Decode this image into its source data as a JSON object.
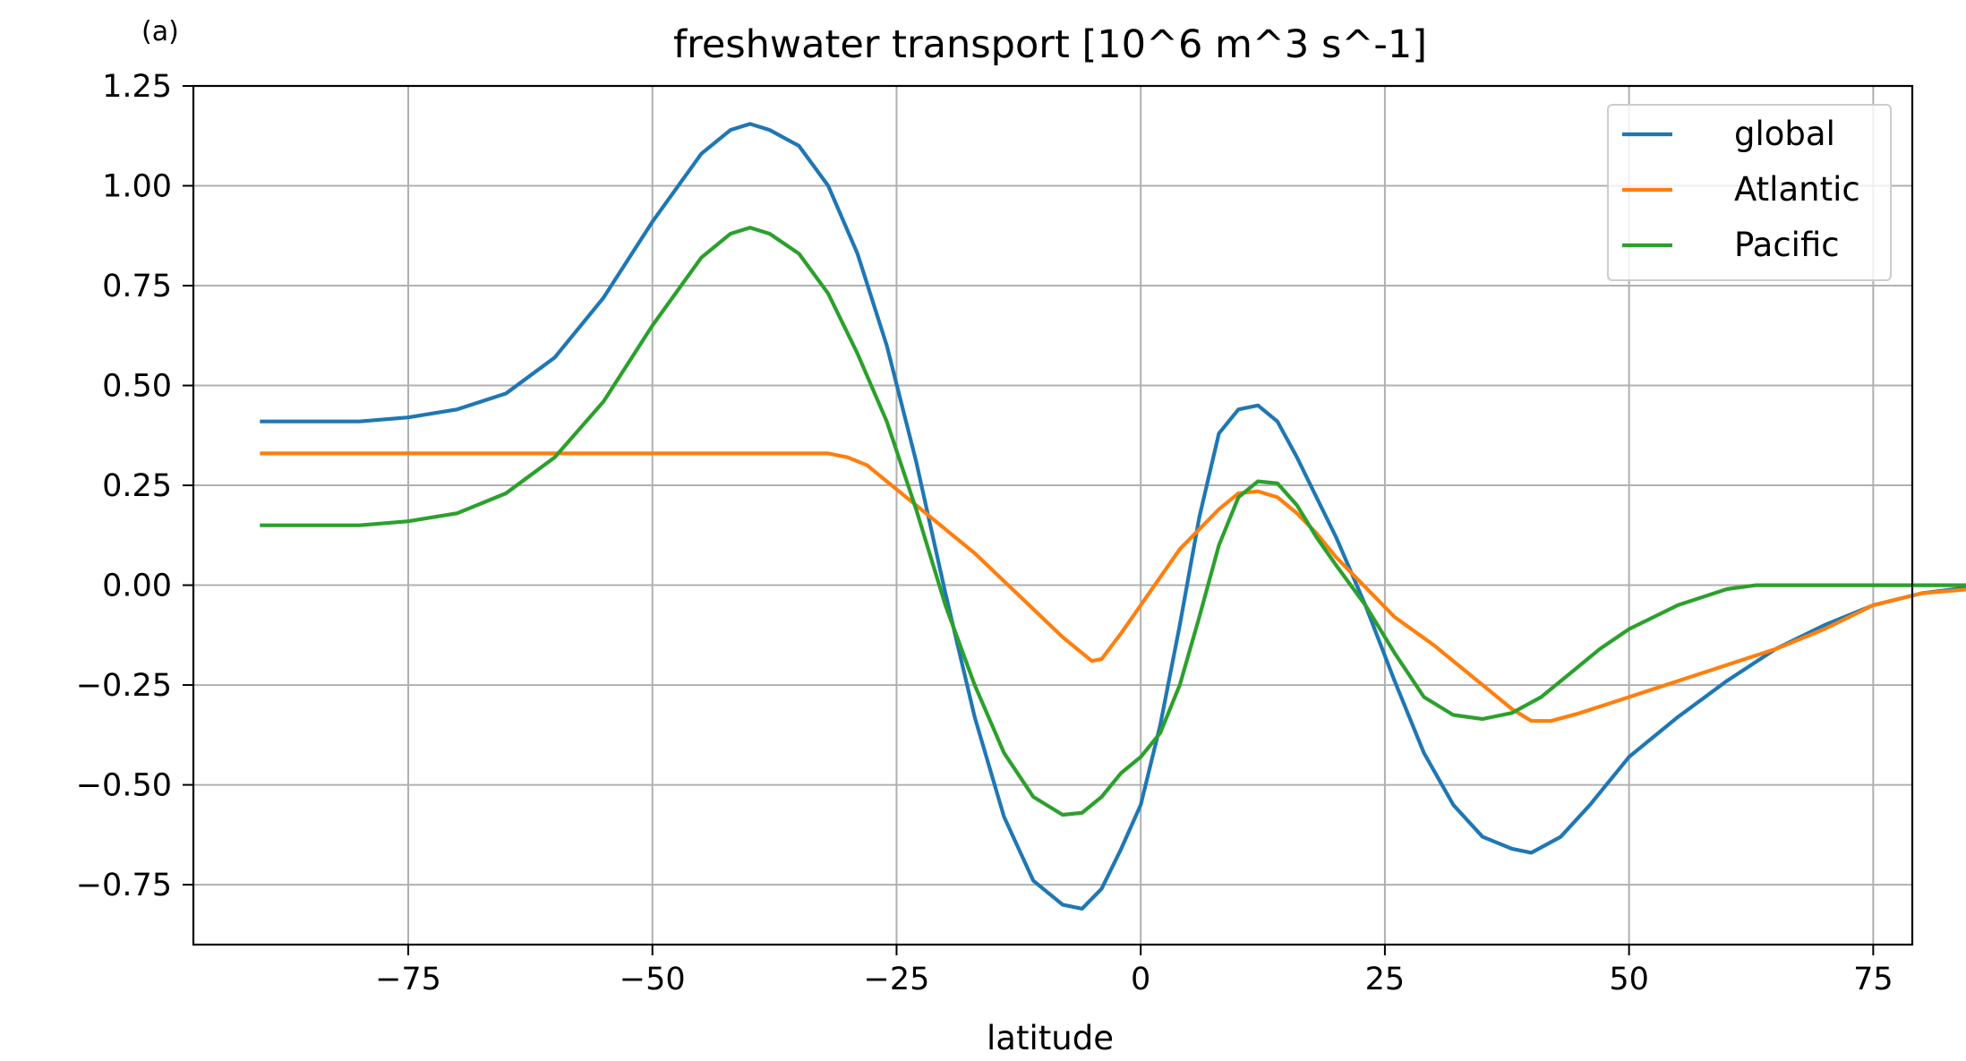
{
  "panel_label": "(a)",
  "chart_data": {
    "type": "line",
    "title": "freshwater transport [10^6 m^3 s^-1]",
    "xlabel": "latitude",
    "ylabel": "",
    "xlim": [
      -97,
      79
    ],
    "ylim": [
      -0.9,
      1.25
    ],
    "xticks": [
      -75,
      -50,
      -25,
      0,
      25,
      50,
      75
    ],
    "xtick_labels": [
      "−75",
      "−50",
      "−25",
      "0",
      "25",
      "50",
      "75"
    ],
    "yticks": [
      1.25,
      1.0,
      0.75,
      0.5,
      0.25,
      0.0,
      -0.25,
      -0.5,
      -0.75
    ],
    "ytick_labels": [
      "1.25",
      "1.00",
      "0.75",
      "0.50",
      "0.25",
      "0.00",
      "−0.25",
      "−0.50",
      "−0.75"
    ],
    "grid": true,
    "legend_position": "top-right",
    "series": [
      {
        "name": "global",
        "color": "#1f77b4",
        "x": [
          -90,
          -85,
          -80,
          -75,
          -70,
          -65,
          -60,
          -55,
          -50,
          -45,
          -42,
          -40,
          -38,
          -35,
          -32,
          -29,
          -26,
          -23,
          -20,
          -17,
          -14,
          -11,
          -8,
          -6,
          -4,
          -2,
          0,
          2,
          4,
          6,
          8,
          10,
          12,
          14,
          16,
          18,
          20,
          23,
          26,
          29,
          32,
          35,
          38,
          40,
          43,
          46,
          50,
          55,
          60,
          65,
          70,
          75,
          80,
          85,
          90
        ],
        "y": [
          0.41,
          0.41,
          0.41,
          0.42,
          0.44,
          0.48,
          0.57,
          0.72,
          0.91,
          1.08,
          1.14,
          1.155,
          1.14,
          1.1,
          1.0,
          0.83,
          0.6,
          0.31,
          -0.02,
          -0.33,
          -0.58,
          -0.74,
          -0.8,
          -0.81,
          -0.76,
          -0.66,
          -0.55,
          -0.35,
          -0.1,
          0.17,
          0.38,
          0.44,
          0.45,
          0.41,
          0.32,
          0.22,
          0.12,
          -0.05,
          -0.24,
          -0.42,
          -0.55,
          -0.63,
          -0.66,
          -0.67,
          -0.63,
          -0.55,
          -0.43,
          -0.33,
          -0.24,
          -0.16,
          -0.1,
          -0.05,
          -0.02,
          -0.005,
          0.0
        ]
      },
      {
        "name": "Atlantic",
        "color": "#ff7f0e",
        "x": [
          -90,
          -80,
          -70,
          -60,
          -50,
          -40,
          -34,
          -32,
          -30,
          -28,
          -26,
          -23,
          -20,
          -17,
          -14,
          -11,
          -8,
          -6,
          -5,
          -4,
          -2,
          0,
          2,
          4,
          6,
          8,
          10,
          12,
          14,
          16,
          18,
          20,
          22,
          24,
          26,
          30,
          34,
          38,
          40,
          42,
          45,
          50,
          55,
          60,
          65,
          70,
          75,
          80,
          85,
          90
        ],
        "y": [
          0.33,
          0.33,
          0.33,
          0.33,
          0.33,
          0.33,
          0.33,
          0.33,
          0.32,
          0.3,
          0.26,
          0.2,
          0.14,
          0.08,
          0.01,
          -0.06,
          -0.13,
          -0.17,
          -0.19,
          -0.185,
          -0.12,
          -0.05,
          0.02,
          0.09,
          0.14,
          0.19,
          0.23,
          0.235,
          0.22,
          0.18,
          0.13,
          0.07,
          0.02,
          -0.03,
          -0.08,
          -0.15,
          -0.23,
          -0.31,
          -0.34,
          -0.34,
          -0.32,
          -0.28,
          -0.24,
          -0.2,
          -0.16,
          -0.11,
          -0.05,
          -0.02,
          -0.01,
          0.0
        ]
      },
      {
        "name": "Pacific",
        "color": "#2ca02c",
        "x": [
          -90,
          -85,
          -80,
          -75,
          -70,
          -65,
          -60,
          -55,
          -50,
          -45,
          -42,
          -40,
          -38,
          -35,
          -32,
          -29,
          -26,
          -23,
          -20,
          -17,
          -14,
          -11,
          -8,
          -6,
          -4,
          -2,
          0,
          2,
          4,
          6,
          8,
          10,
          12,
          14,
          16,
          18,
          20,
          23,
          26,
          29,
          32,
          35,
          38,
          41,
          44,
          47,
          50,
          55,
          60,
          63,
          70,
          80,
          90
        ],
        "y": [
          0.15,
          0.15,
          0.15,
          0.16,
          0.18,
          0.23,
          0.32,
          0.46,
          0.65,
          0.82,
          0.88,
          0.895,
          0.88,
          0.83,
          0.73,
          0.58,
          0.41,
          0.19,
          -0.05,
          -0.25,
          -0.42,
          -0.53,
          -0.575,
          -0.57,
          -0.53,
          -0.47,
          -0.43,
          -0.37,
          -0.25,
          -0.08,
          0.1,
          0.22,
          0.26,
          0.255,
          0.2,
          0.12,
          0.05,
          -0.05,
          -0.17,
          -0.28,
          -0.325,
          -0.335,
          -0.32,
          -0.28,
          -0.22,
          -0.16,
          -0.11,
          -0.05,
          -0.01,
          0.0,
          0.0,
          0.0,
          0.0
        ]
      }
    ]
  }
}
